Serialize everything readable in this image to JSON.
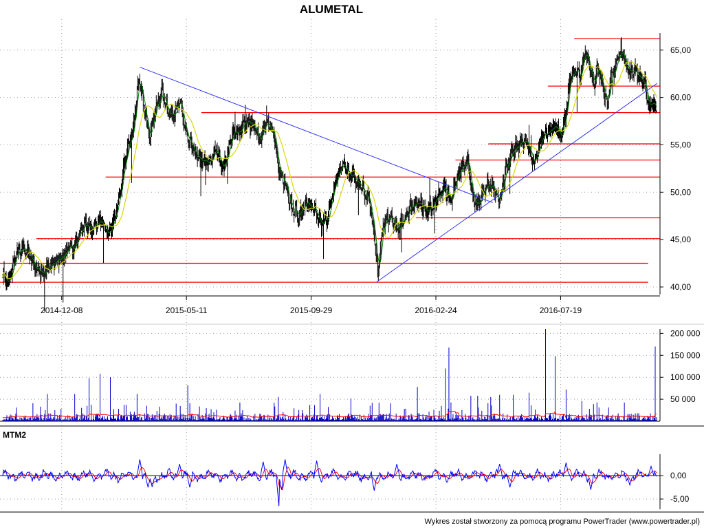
{
  "title": "ALUMETAL",
  "footer": "Wykres został stworzony za pomocą programu PowerTrader (www.powertrader.pl)",
  "colors": {
    "candle": "#000000",
    "ma_short": "#008000",
    "ma_long": "#d8d800",
    "levels": "#ff0000",
    "trendlines": "#3030ff",
    "volume_bars": "#0000c8",
    "volume_avg": "#ff0000",
    "mtm": "#0000ff",
    "mtm_signal": "#ff0000",
    "grid": "#999999"
  },
  "chart_data": [
    {
      "panel": "price",
      "type": "line",
      "title": "ALUMETAL",
      "x_tick_labels": [
        "2014-12-08",
        "2015-05-11",
        "2015-09-29",
        "2016-02-24",
        "2016-07-19"
      ],
      "y_tick_labels": [
        "40,00",
        "45,00",
        "50,00",
        "55,00",
        "60,00",
        "65,00"
      ],
      "ylim": [
        39.2,
        66.8
      ],
      "grid": true,
      "close_keypoints": [
        {
          "i": 0,
          "v": 41.5
        },
        {
          "i": 8,
          "v": 40.2
        },
        {
          "i": 20,
          "v": 43.5
        },
        {
          "i": 35,
          "v": 44.0
        },
        {
          "i": 48,
          "v": 42.0
        },
        {
          "i": 60,
          "v": 41.5
        },
        {
          "i": 75,
          "v": 42.5
        },
        {
          "i": 90,
          "v": 43.5
        },
        {
          "i": 105,
          "v": 44.5
        },
        {
          "i": 118,
          "v": 46.5
        },
        {
          "i": 130,
          "v": 46.2
        },
        {
          "i": 140,
          "v": 47.0
        },
        {
          "i": 155,
          "v": 45.5
        },
        {
          "i": 168,
          "v": 48.5
        },
        {
          "i": 180,
          "v": 54.0
        },
        {
          "i": 190,
          "v": 56.5
        },
        {
          "i": 198,
          "v": 62.0
        },
        {
          "i": 206,
          "v": 59.0
        },
        {
          "i": 214,
          "v": 56.0
        },
        {
          "i": 222,
          "v": 58.5
        },
        {
          "i": 232,
          "v": 60.5
        },
        {
          "i": 245,
          "v": 58.0
        },
        {
          "i": 258,
          "v": 59.5
        },
        {
          "i": 270,
          "v": 55.5
        },
        {
          "i": 285,
          "v": 53.5
        },
        {
          "i": 300,
          "v": 53.0
        },
        {
          "i": 312,
          "v": 54.5
        },
        {
          "i": 322,
          "v": 52.5
        },
        {
          "i": 335,
          "v": 56.0
        },
        {
          "i": 345,
          "v": 56.5
        },
        {
          "i": 355,
          "v": 57.5
        },
        {
          "i": 365,
          "v": 57.0
        },
        {
          "i": 375,
          "v": 55.5
        },
        {
          "i": 385,
          "v": 57.5
        },
        {
          "i": 395,
          "v": 56.5
        },
        {
          "i": 403,
          "v": 52.0
        },
        {
          "i": 412,
          "v": 51.0
        },
        {
          "i": 422,
          "v": 48.5
        },
        {
          "i": 432,
          "v": 47.5
        },
        {
          "i": 442,
          "v": 49.0
        },
        {
          "i": 455,
          "v": 48.0
        },
        {
          "i": 465,
          "v": 46.5
        },
        {
          "i": 475,
          "v": 47.5
        },
        {
          "i": 485,
          "v": 51.0
        },
        {
          "i": 495,
          "v": 53.0
        },
        {
          "i": 505,
          "v": 52.0
        },
        {
          "i": 515,
          "v": 51.5
        },
        {
          "i": 525,
          "v": 50.5
        },
        {
          "i": 535,
          "v": 49.0
        },
        {
          "i": 542,
          "v": 45.5
        },
        {
          "i": 547,
          "v": 41.5
        },
        {
          "i": 555,
          "v": 46.5
        },
        {
          "i": 565,
          "v": 47.5
        },
        {
          "i": 575,
          "v": 46.0
        },
        {
          "i": 585,
          "v": 47.0
        },
        {
          "i": 595,
          "v": 48.5
        },
        {
          "i": 605,
          "v": 49.0
        },
        {
          "i": 615,
          "v": 48.0
        },
        {
          "i": 625,
          "v": 48.5
        },
        {
          "i": 635,
          "v": 49.5
        },
        {
          "i": 645,
          "v": 50.5
        },
        {
          "i": 655,
          "v": 49.0
        },
        {
          "i": 662,
          "v": 51.5
        },
        {
          "i": 670,
          "v": 52.5
        },
        {
          "i": 678,
          "v": 53.5
        },
        {
          "i": 686,
          "v": 49.5
        },
        {
          "i": 695,
          "v": 48.5
        },
        {
          "i": 705,
          "v": 51.0
        },
        {
          "i": 715,
          "v": 50.5
        },
        {
          "i": 725,
          "v": 49.0
        },
        {
          "i": 735,
          "v": 52.5
        },
        {
          "i": 745,
          "v": 54.5
        },
        {
          "i": 755,
          "v": 55.0
        },
        {
          "i": 765,
          "v": 55.5
        },
        {
          "i": 775,
          "v": 53.0
        },
        {
          "i": 785,
          "v": 55.5
        },
        {
          "i": 795,
          "v": 56.5
        },
        {
          "i": 805,
          "v": 57.0
        },
        {
          "i": 815,
          "v": 56.0
        },
        {
          "i": 822,
          "v": 58.5
        },
        {
          "i": 828,
          "v": 62.0
        },
        {
          "i": 835,
          "v": 63.0
        },
        {
          "i": 842,
          "v": 62.0
        },
        {
          "i": 850,
          "v": 65.0
        },
        {
          "i": 856,
          "v": 63.5
        },
        {
          "i": 862,
          "v": 61.5
        },
        {
          "i": 868,
          "v": 63.0
        },
        {
          "i": 875,
          "v": 61.5
        },
        {
          "i": 882,
          "v": 59.5
        },
        {
          "i": 888,
          "v": 62.0
        },
        {
          "i": 895,
          "v": 63.5
        },
        {
          "i": 902,
          "v": 65.0
        },
        {
          "i": 908,
          "v": 64.0
        },
        {
          "i": 915,
          "v": 62.5
        },
        {
          "i": 922,
          "v": 63.0
        },
        {
          "i": 930,
          "v": 62.0
        },
        {
          "i": 937,
          "v": 61.5
        },
        {
          "i": 943,
          "v": 58.5
        },
        {
          "i": 948,
          "v": 60.0
        },
        {
          "i": 953,
          "v": 58.5
        }
      ],
      "horizontal_levels": [
        {
          "v": 40.5,
          "from": 0.0,
          "to": 0.982
        },
        {
          "v": 42.5,
          "from": 0.0,
          "to": 0.982
        },
        {
          "v": 45.1,
          "from": 0.055,
          "to": 1.0
        },
        {
          "v": 47.3,
          "from": 0.63,
          "to": 1.0
        },
        {
          "v": 51.6,
          "from": 0.16,
          "to": 1.0
        },
        {
          "v": 53.4,
          "from": 0.69,
          "to": 1.0
        },
        {
          "v": 55.1,
          "from": 0.74,
          "to": 1.0
        },
        {
          "v": 58.4,
          "from": 0.305,
          "to": 1.0
        },
        {
          "v": 61.2,
          "from": 0.83,
          "to": 1.0
        },
        {
          "v": 66.2,
          "from": 0.87,
          "to": 1.0
        }
      ],
      "trend_lines": [
        {
          "i1": 200,
          "v1": 63.2,
          "i2": 715,
          "v2": 48.9
        },
        {
          "i1": 545,
          "v1": 40.5,
          "i2": 955,
          "v2": 61.5
        }
      ]
    },
    {
      "panel": "volume",
      "type": "bar",
      "y_tick_labels": [
        "50 000",
        "100 000",
        "150 000",
        "200 000"
      ],
      "ylim": [
        0,
        210000
      ],
      "grid": true,
      "spikes": [
        {
          "i": 65,
          "v": 62000
        },
        {
          "i": 105,
          "v": 62000
        },
        {
          "i": 126,
          "v": 98000
        },
        {
          "i": 142,
          "v": 108000
        },
        {
          "i": 157,
          "v": 100000
        },
        {
          "i": 196,
          "v": 62000
        },
        {
          "i": 270,
          "v": 82000
        },
        {
          "i": 402,
          "v": 55000
        },
        {
          "i": 463,
          "v": 62000
        },
        {
          "i": 508,
          "v": 52000
        },
        {
          "i": 605,
          "v": 78000
        },
        {
          "i": 646,
          "v": 120000
        },
        {
          "i": 651,
          "v": 168000
        },
        {
          "i": 683,
          "v": 58000
        },
        {
          "i": 693,
          "v": 58000
        },
        {
          "i": 712,
          "v": 55000
        },
        {
          "i": 725,
          "v": 60000
        },
        {
          "i": 745,
          "v": 60000
        },
        {
          "i": 768,
          "v": 65000
        },
        {
          "i": 792,
          "v": 210000
        },
        {
          "i": 806,
          "v": 148000
        },
        {
          "i": 822,
          "v": 72000
        },
        {
          "i": 952,
          "v": 170000
        }
      ],
      "baseline_volume": 12000,
      "avg_level": 14000
    },
    {
      "panel": "momentum",
      "type": "line",
      "title": "MTM2",
      "y_tick_labels": [
        "0,00",
        "-5,00"
      ],
      "ylim": [
        -7.2,
        4.6
      ],
      "grid": true,
      "extremes": [
        {
          "i": 200,
          "v": 3.5
        },
        {
          "i": 212,
          "v": -2.5
        },
        {
          "i": 218,
          "v": -2.4
        },
        {
          "i": 258,
          "v": 2.5
        },
        {
          "i": 273,
          "v": -2.5
        },
        {
          "i": 380,
          "v": 3.0
        },
        {
          "i": 403,
          "v": -6.5
        },
        {
          "i": 407,
          "v": -3.0
        },
        {
          "i": 412,
          "v": 3.5
        },
        {
          "i": 458,
          "v": 3.2
        },
        {
          "i": 542,
          "v": -3.2
        },
        {
          "i": 575,
          "v": 2.5
        },
        {
          "i": 725,
          "v": 2.5
        },
        {
          "i": 740,
          "v": -2.5
        },
        {
          "i": 822,
          "v": 2.8
        },
        {
          "i": 858,
          "v": -3.0
        },
        {
          "i": 915,
          "v": -2.0
        },
        {
          "i": 946,
          "v": 2.0
        }
      ]
    }
  ]
}
